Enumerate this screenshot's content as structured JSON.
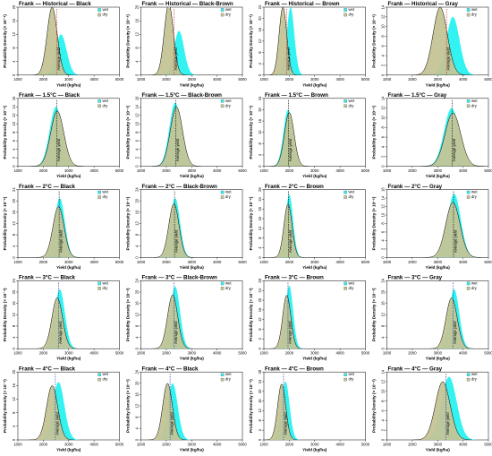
{
  "figure": {
    "xlabel": "Yield (kg/ha)",
    "ylabel": "Probability Density (× 10⁻⁴)",
    "avg_label": "Average yield",
    "legend": [
      "wet",
      "dry"
    ],
    "colors": {
      "wet": "#33f2f2",
      "dry": "#c4c496",
      "curve": "#000000",
      "avg_dashed": "#000000",
      "avg_red": "#dd2222",
      "avg_blue": "#1b2fa8"
    }
  },
  "chart_data": [
    {
      "title": "Frank — Historical — Black",
      "type": "area",
      "xlim": [
        1000,
        5000
      ],
      "xticks": [
        1000,
        2000,
        3000,
        4000,
        5000
      ],
      "ylim": [
        0,
        20
      ],
      "yticks": [
        0,
        4,
        8,
        12,
        16,
        20
      ],
      "avg_line_color": "red",
      "series": [
        {
          "name": "wet",
          "mean": 2700,
          "sd": 220,
          "peak": 12
        },
        {
          "name": "dry",
          "mean": 2350,
          "sd": 200,
          "peak": 20
        }
      ]
    },
    {
      "title": "Frank — Historical — Black-Brown",
      "type": "area",
      "xlim": [
        1000,
        5000
      ],
      "xticks": [
        1000,
        2000,
        3000,
        4000,
        5000
      ],
      "ylim": [
        0,
        20
      ],
      "yticks": [
        0,
        4,
        8,
        12,
        16,
        20
      ],
      "avg_line_color": "red",
      "series": [
        {
          "name": "wet",
          "mean": 2500,
          "sd": 200,
          "peak": 13
        },
        {
          "name": "dry",
          "mean": 2100,
          "sd": 180,
          "peak": 21
        }
      ]
    },
    {
      "title": "Frank — Historical — Brown",
      "type": "area",
      "xlim": [
        1000,
        5000
      ],
      "xticks": [
        1000,
        2000,
        3000,
        4000,
        5000
      ],
      "ylim": [
        0,
        24
      ],
      "yticks": [
        0,
        4,
        8,
        12,
        16,
        20,
        24
      ],
      "avg_line_color": "red",
      "series": [
        {
          "name": "wet",
          "mean": 2050,
          "sd": 150,
          "peak": 24
        },
        {
          "name": "dry",
          "mean": 1750,
          "sd": 150,
          "peak": 24
        }
      ]
    },
    {
      "title": "Frank — Historical — Gray",
      "type": "area",
      "xlim": [
        1000,
        5000
      ],
      "xticks": [
        1000,
        2000,
        3000,
        4000,
        5000
      ],
      "ylim": [
        0,
        14
      ],
      "yticks": [
        0,
        2,
        4,
        6,
        8,
        10,
        12,
        14
      ],
      "avg_line_color": "red",
      "series": [
        {
          "name": "wet",
          "mean": 3600,
          "sd": 260,
          "peak": 12
        },
        {
          "name": "dry",
          "mean": 3100,
          "sd": 280,
          "peak": 14
        }
      ]
    },
    {
      "title": "Frank — 1.5°C — Black",
      "type": "area",
      "xlim": [
        1000,
        5000
      ],
      "xticks": [
        1000,
        2000,
        3000,
        4000,
        5000
      ],
      "ylim": [
        0,
        16
      ],
      "yticks": [
        0,
        2,
        4,
        6,
        8,
        10,
        12,
        14,
        16
      ],
      "avg_line_color": "dashed",
      "series": [
        {
          "name": "wet",
          "mean": 2500,
          "sd": 250,
          "peak": 14
        },
        {
          "name": "dry",
          "mean": 2550,
          "sd": 260,
          "peak": 13
        }
      ]
    },
    {
      "title": "Frank — 1.5°C — Black-Brown",
      "type": "area",
      "xlim": [
        1000,
        5000
      ],
      "xticks": [
        1000,
        2000,
        3000,
        4000,
        5000
      ],
      "ylim": [
        0,
        16
      ],
      "yticks": [
        0,
        2,
        4,
        6,
        8,
        10,
        12,
        14,
        16
      ],
      "avg_line_color": "dashed",
      "series": [
        {
          "name": "wet",
          "mean": 2350,
          "sd": 230,
          "peak": 15
        },
        {
          "name": "dry",
          "mean": 2400,
          "sd": 240,
          "peak": 14
        }
      ]
    },
    {
      "title": "Frank — 1.5°C — Brown",
      "type": "area",
      "xlim": [
        1000,
        5000
      ],
      "xticks": [
        1000,
        2000,
        3000,
        4000,
        5000
      ],
      "ylim": [
        0,
        24
      ],
      "yticks": [
        0,
        4,
        8,
        12,
        16,
        20,
        24
      ],
      "avg_line_color": "dashed",
      "series": [
        {
          "name": "wet",
          "mean": 1950,
          "sd": 180,
          "peak": 20
        },
        {
          "name": "dry",
          "mean": 2000,
          "sd": 190,
          "peak": 19
        }
      ]
    },
    {
      "title": "Frank — 1.5°C — Gray",
      "type": "area",
      "xlim": [
        1000,
        5000
      ],
      "xticks": [
        1000,
        2000,
        3000,
        4000,
        5000
      ],
      "ylim": [
        0,
        14
      ],
      "yticks": [
        0,
        2,
        4,
        6,
        8,
        10,
        12,
        14
      ],
      "avg_line_color": "dashed",
      "series": [
        {
          "name": "wet",
          "mean": 3550,
          "sd": 300,
          "peak": 12
        },
        {
          "name": "dry",
          "mean": 3600,
          "sd": 310,
          "peak": 11
        }
      ]
    },
    {
      "title": "Frank — 2°C — Black",
      "type": "area",
      "xlim": [
        1000,
        5000
      ],
      "xticks": [
        1000,
        2000,
        3000,
        4000,
        5000
      ],
      "ylim": [
        0,
        24
      ],
      "yticks": [
        0,
        4,
        8,
        12,
        16,
        20,
        24
      ],
      "avg_line_color": "dashed",
      "series": [
        {
          "name": "wet",
          "mean": 2650,
          "sd": 200,
          "peak": 21
        },
        {
          "name": "dry",
          "mean": 2600,
          "sd": 220,
          "peak": 18
        }
      ]
    },
    {
      "title": "Frank — 2°C — Black-Brown",
      "type": "area",
      "xlim": [
        1000,
        5000
      ],
      "xticks": [
        1000,
        2000,
        3000,
        4000,
        5000
      ],
      "ylim": [
        0,
        24
      ],
      "yticks": [
        0,
        4,
        8,
        12,
        16,
        20,
        24
      ],
      "avg_line_color": "dashed",
      "series": [
        {
          "name": "wet",
          "mean": 2350,
          "sd": 190,
          "peak": 21
        },
        {
          "name": "dry",
          "mean": 2300,
          "sd": 200,
          "peak": 19
        }
      ]
    },
    {
      "title": "Frank — 2°C — Brown",
      "type": "area",
      "xlim": [
        1000,
        5000
      ],
      "xticks": [
        1000,
        2000,
        3000,
        4000,
        5000
      ],
      "ylim": [
        0,
        28
      ],
      "yticks": [
        0,
        4,
        8,
        12,
        16,
        20,
        24,
        28
      ],
      "avg_line_color": "dashed",
      "series": [
        {
          "name": "wet",
          "mean": 2000,
          "sd": 150,
          "peak": 26
        },
        {
          "name": "dry",
          "mean": 1950,
          "sd": 160,
          "peak": 22
        }
      ]
    },
    {
      "title": "Frank — 2°C — Gray",
      "type": "area",
      "xlim": [
        1000,
        5000
      ],
      "xticks": [
        1000,
        2000,
        3000,
        4000,
        5000
      ],
      "ylim": [
        0,
        16
      ],
      "yticks": [
        0,
        2,
        4,
        6,
        8,
        10,
        12,
        14,
        16
      ],
      "avg_line_color": "dashed",
      "series": [
        {
          "name": "wet",
          "mean": 3650,
          "sd": 260,
          "peak": 15
        },
        {
          "name": "dry",
          "mean": 3600,
          "sd": 280,
          "peak": 13
        }
      ]
    },
    {
      "title": "Frank — 3°C — Black",
      "type": "area",
      "xlim": [
        1000,
        5000
      ],
      "xticks": [
        1000,
        2000,
        3000,
        4000,
        5000
      ],
      "ylim": [
        0,
        24
      ],
      "yticks": [
        0,
        4,
        8,
        12,
        16,
        20,
        24
      ],
      "avg_line_color": "blue",
      "series": [
        {
          "name": "wet",
          "mean": 2650,
          "sd": 200,
          "peak": 21
        },
        {
          "name": "dry",
          "mean": 2550,
          "sd": 210,
          "peak": 18
        }
      ]
    },
    {
      "title": "Frank — 3°C — Black-Brown",
      "type": "area",
      "xlim": [
        1000,
        5000
      ],
      "xticks": [
        1000,
        2000,
        3000,
        4000,
        5000
      ],
      "ylim": [
        0,
        24
      ],
      "yticks": [
        0,
        4,
        8,
        12,
        16,
        20,
        24
      ],
      "avg_line_color": "blue",
      "series": [
        {
          "name": "wet",
          "mean": 2350,
          "sd": 190,
          "peak": 22
        },
        {
          "name": "dry",
          "mean": 2250,
          "sd": 200,
          "peak": 19
        }
      ]
    },
    {
      "title": "Frank — 3°C — Brown",
      "type": "area",
      "xlim": [
        1000,
        5000
      ],
      "xticks": [
        1000,
        2000,
        3000,
        4000,
        5000
      ],
      "ylim": [
        0,
        28
      ],
      "yticks": [
        0,
        4,
        8,
        12,
        16,
        20,
        24,
        28
      ],
      "avg_line_color": "blue",
      "series": [
        {
          "name": "wet",
          "mean": 2000,
          "sd": 150,
          "peak": 26
        },
        {
          "name": "dry",
          "mean": 1900,
          "sd": 160,
          "peak": 22
        }
      ]
    },
    {
      "title": "Frank — 3°C — Gray",
      "type": "area",
      "xlim": [
        1000,
        5000
      ],
      "xticks": [
        1000,
        2000,
        3000,
        4000,
        5000
      ],
      "ylim": [
        0,
        24
      ],
      "yticks": [
        0,
        4,
        8,
        12,
        16,
        20,
        24
      ],
      "avg_line_color": "blue",
      "series": [
        {
          "name": "wet",
          "mean": 3650,
          "sd": 200,
          "peak": 21
        },
        {
          "name": "dry",
          "mean": 3550,
          "sd": 220,
          "peak": 18
        }
      ]
    },
    {
      "title": "Frank — 4°C — Black",
      "type": "area",
      "xlim": [
        1000,
        5000
      ],
      "xticks": [
        1000,
        2000,
        3000,
        4000,
        5000
      ],
      "ylim": [
        0,
        20
      ],
      "yticks": [
        0,
        4,
        8,
        12,
        16,
        20
      ],
      "avg_line_color": "blue",
      "series": [
        {
          "name": "wet",
          "mean": 2600,
          "sd": 230,
          "peak": 17
        },
        {
          "name": "dry",
          "mean": 2350,
          "sd": 220,
          "peak": 16
        }
      ]
    },
    {
      "title": "Frank — 4°C — Black",
      "type": "area",
      "xlim": [
        1000,
        5000
      ],
      "xticks": [
        1000,
        2000,
        3000,
        4000,
        5000
      ],
      "ylim": [
        0,
        24
      ],
      "yticks": [
        0,
        4,
        8,
        12,
        16,
        20,
        24
      ],
      "avg_line_color": "blue",
      "series": [
        {
          "name": "wet",
          "mean": 2250,
          "sd": 200,
          "peak": 20
        },
        {
          "name": "dry",
          "mean": 2050,
          "sd": 190,
          "peak": 20
        }
      ]
    },
    {
      "title": "Frank — 4°C — Brown",
      "type": "area",
      "xlim": [
        1000,
        5000
      ],
      "xticks": [
        1000,
        2000,
        3000,
        4000,
        5000
      ],
      "ylim": [
        0,
        28
      ],
      "yticks": [
        0,
        4,
        8,
        12,
        16,
        20,
        24,
        28
      ],
      "avg_line_color": "blue",
      "series": [
        {
          "name": "wet",
          "mean": 1850,
          "sd": 160,
          "peak": 24
        },
        {
          "name": "dry",
          "mean": 1700,
          "sd": 160,
          "peak": 23
        }
      ]
    },
    {
      "title": "Frank — 4°C — Gray",
      "type": "area",
      "xlim": [
        1000,
        5000
      ],
      "xticks": [
        1000,
        2000,
        3000,
        4000,
        5000
      ],
      "ylim": [
        0,
        14
      ],
      "yticks": [
        0,
        2,
        4,
        6,
        8,
        10,
        12,
        14
      ],
      "avg_line_color": "blue",
      "series": [
        {
          "name": "wet",
          "mean": 3450,
          "sd": 300,
          "peak": 13
        },
        {
          "name": "dry",
          "mean": 3200,
          "sd": 290,
          "peak": 12
        }
      ]
    }
  ]
}
